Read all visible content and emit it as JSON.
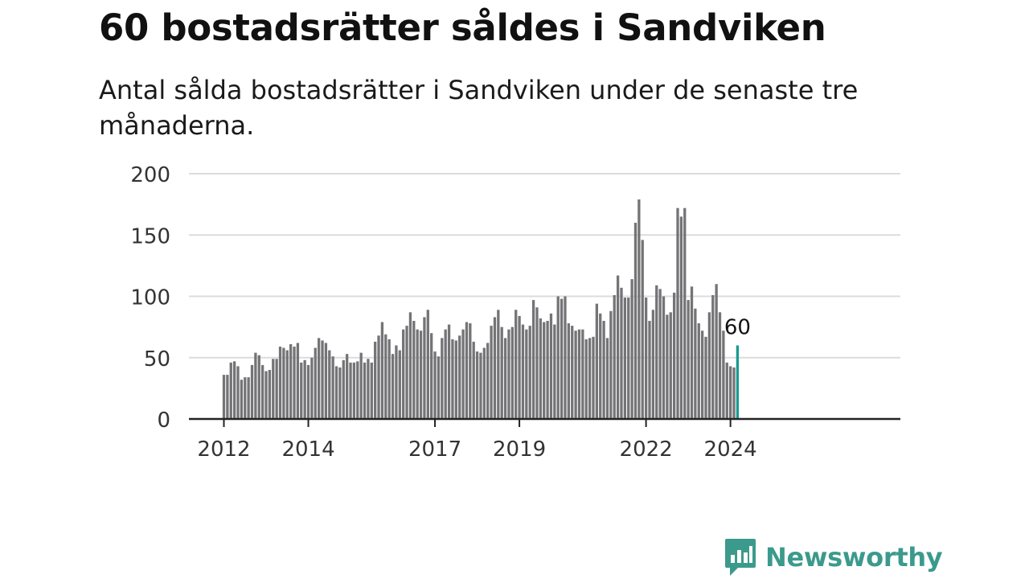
{
  "title": "60 bostadsrätter såldes i Sandviken",
  "subtitle": "Antal sålda bostadsrätter i Sandviken under de senaste tre månaderna.",
  "brand": {
    "name": "Newsworthy",
    "icon": "newsworthy-logo-icon",
    "color": "#3b9a8c"
  },
  "chart_data": {
    "type": "bar",
    "title": "",
    "xlabel": "",
    "ylabel": "",
    "ylim": [
      0,
      200
    ],
    "yticks": [
      0,
      50,
      100,
      150,
      200
    ],
    "xticks": [
      "2012",
      "2014",
      "2017",
      "2019",
      "2022",
      "2024"
    ],
    "grid": true,
    "bar_color": "#747477",
    "highlight_color": "#179c8f",
    "highlight_label": "60",
    "series": [
      {
        "values": [
          36,
          36,
          46,
          47,
          43,
          32,
          34,
          34,
          44,
          54,
          52,
          44,
          39,
          40,
          49,
          49,
          59,
          58,
          56,
          61,
          59,
          62,
          46,
          48,
          44,
          50,
          58,
          66,
          64,
          62,
          56,
          51,
          43,
          42,
          48,
          53,
          46,
          46,
          47,
          54,
          46,
          49,
          46,
          63,
          68,
          79,
          69,
          65,
          53,
          60,
          56,
          73,
          76,
          87,
          80,
          73,
          72,
          83,
          89,
          70,
          55,
          51,
          66,
          73,
          77,
          65,
          64,
          68,
          73,
          79,
          78,
          63,
          55,
          54,
          58,
          62,
          76,
          83,
          89,
          75,
          66,
          73,
          75,
          89,
          84,
          77,
          73,
          76,
          97,
          91,
          82,
          79,
          80,
          86,
          77,
          100,
          98,
          100,
          78,
          76,
          72,
          73,
          73,
          65,
          66,
          67,
          94,
          86,
          80,
          66,
          88,
          101,
          117,
          107,
          99,
          99,
          114,
          160,
          179,
          146,
          99,
          80,
          89,
          109,
          106,
          100,
          85,
          87,
          103,
          172,
          165,
          172,
          97,
          108,
          90,
          78,
          72,
          67,
          87,
          101,
          110,
          87,
          72,
          46,
          43,
          42,
          60
        ]
      }
    ]
  }
}
